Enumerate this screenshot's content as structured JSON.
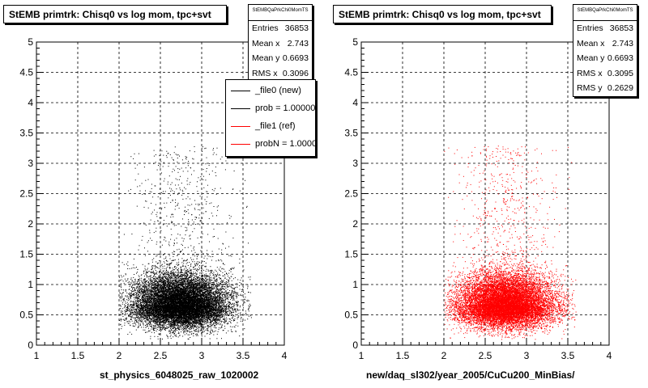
{
  "chart_data": [
    {
      "type": "scatter",
      "title": "StEMB primtrk: Chisq0 vs log mom, tpc+svt",
      "xlabel": "st_physics_6048025_raw_1020002",
      "ylabel": "",
      "xlim": [
        1,
        4
      ],
      "ylim": [
        0,
        5
      ],
      "xticks": [
        "1",
        "1.5",
        "2",
        "2.5",
        "3",
        "3.5",
        "4"
      ],
      "yticks": [
        "0",
        "0.5",
        "1",
        "1.5",
        "2",
        "2.5",
        "3",
        "3.5",
        "4",
        "4.5",
        "5"
      ],
      "grid": true,
      "marker_color": "#000000",
      "stats": {
        "name": "StEMBQaPrkChi0MomTS",
        "entries": "36853",
        "mean_x": "2.743",
        "mean_y": "0.6693",
        "rms_x": "0.3096"
      },
      "legend_position": "top-right",
      "legend": [
        {
          "label": "_file0 (new)",
          "color": "#000000"
        },
        {
          "label": "prob = 1.000000",
          "color": "#000000"
        },
        {
          "label": "_file1 (ref)",
          "color": "#ff0000"
        },
        {
          "label": "probN = 1.000000",
          "color": "#ff0000"
        }
      ],
      "distribution": {
        "x_mean": 2.743,
        "x_rms": 0.3096,
        "x_range": [
          2.0,
          3.6
        ],
        "y_mean": 0.6693,
        "y_rms": 0.2629,
        "y_range": [
          0.1,
          3.3
        ]
      }
    },
    {
      "type": "scatter",
      "title": "StEMB primtrk: Chisq0 vs log mom, tpc+svt",
      "xlabel": "new/daq_sl302/year_2005/CuCu200_MinBias/",
      "ylabel": "",
      "xlim": [
        1,
        4
      ],
      "ylim": [
        0,
        5
      ],
      "xticks": [
        "1",
        "1.5",
        "2",
        "2.5",
        "3",
        "3.5",
        "4"
      ],
      "yticks": [
        "0",
        "0.5",
        "1",
        "1.5",
        "2",
        "2.5",
        "3",
        "3.5",
        "4",
        "4.5",
        "5"
      ],
      "grid": true,
      "marker_color": "#ff0000",
      "stats": {
        "name": "StEMBQaPrkChi0MomTS",
        "entries": "36853",
        "mean_x": "2.743",
        "mean_y": "0.6693",
        "rms_x": "0.3095",
        "rms_y": "0.2629"
      },
      "distribution": {
        "x_mean": 2.743,
        "x_rms": 0.3095,
        "x_range": [
          2.0,
          3.6
        ],
        "y_mean": 0.6693,
        "y_rms": 0.2629,
        "y_range": [
          0.1,
          3.3
        ]
      }
    }
  ],
  "labels": {
    "entries": "Entries",
    "mean_x": "Mean x",
    "mean_y": "Mean y",
    "rms_x": "RMS x",
    "rms_y": "RMS y"
  }
}
